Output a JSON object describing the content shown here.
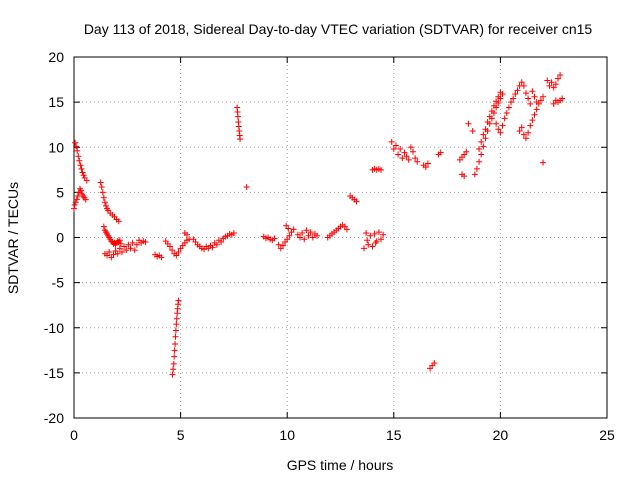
{
  "chart_data": {
    "type": "scatter",
    "title": "Day 113 of 2018, Sidereal Day-to-day VTEC variation (SDTVAR) for receiver cn15",
    "xlabel": "GPS time / hours",
    "ylabel": "SDTVAR / TECUs",
    "xlim": [
      0,
      25
    ],
    "ylim": [
      -20,
      20
    ],
    "xticks": [
      0,
      5,
      10,
      15,
      20,
      25
    ],
    "yticks": [
      -20,
      -15,
      -10,
      -5,
      0,
      5,
      10,
      15,
      20
    ],
    "xtick_labels": [
      "0",
      "5",
      "10",
      "15",
      "20",
      "25"
    ],
    "ytick_labels": [
      "-20",
      "-15",
      "-10",
      "-5",
      "0",
      "5",
      "10",
      "15",
      "20"
    ],
    "grid": true,
    "marker": "+",
    "color": "#ff0000",
    "series": [
      {
        "name": "SDTVAR",
        "points": [
          [
            0.0,
            3.2
          ],
          [
            0.03,
            3.6
          ],
          [
            0.05,
            10.5
          ],
          [
            0.08,
            3.9
          ],
          [
            0.1,
            10.1
          ],
          [
            0.13,
            4.2
          ],
          [
            0.15,
            9.6
          ],
          [
            0.18,
            4.6
          ],
          [
            0.2,
            9.0
          ],
          [
            0.23,
            5.0
          ],
          [
            0.25,
            8.5
          ],
          [
            0.28,
            5.4
          ],
          [
            0.3,
            8.0
          ],
          [
            0.33,
            5.2
          ],
          [
            0.35,
            7.6
          ],
          [
            0.38,
            4.8
          ],
          [
            0.4,
            7.2
          ],
          [
            0.43,
            4.6
          ],
          [
            0.45,
            6.9
          ],
          [
            0.48,
            4.4
          ],
          [
            0.5,
            6.6
          ],
          [
            0.55,
            4.2
          ],
          [
            0.6,
            6.3
          ],
          [
            1.25,
            6.1
          ],
          [
            1.3,
            5.6
          ],
          [
            1.35,
            5.0
          ],
          [
            1.4,
            4.4
          ],
          [
            1.45,
            3.9
          ],
          [
            1.5,
            3.5
          ],
          [
            1.55,
            3.2
          ],
          [
            1.6,
            3.0
          ],
          [
            1.7,
            2.7
          ],
          [
            1.8,
            2.5
          ],
          [
            1.9,
            2.3
          ],
          [
            2.0,
            2.0
          ],
          [
            2.1,
            1.8
          ],
          [
            1.4,
            1.2
          ],
          [
            1.45,
            0.8
          ],
          [
            1.5,
            0.6
          ],
          [
            1.55,
            0.4
          ],
          [
            1.6,
            0.2
          ],
          [
            1.65,
            0.0
          ],
          [
            1.7,
            -0.2
          ],
          [
            1.75,
            -0.4
          ],
          [
            1.8,
            -0.5
          ],
          [
            1.85,
            -0.7
          ],
          [
            1.9,
            -0.6
          ],
          [
            1.95,
            -0.8
          ],
          [
            2.0,
            -0.6
          ],
          [
            2.05,
            -0.4
          ],
          [
            2.1,
            -0.5
          ],
          [
            2.15,
            -0.3
          ],
          [
            2.2,
            -0.7
          ],
          [
            1.45,
            -1.8
          ],
          [
            1.55,
            -2.0
          ],
          [
            1.65,
            -1.6
          ],
          [
            1.75,
            -2.2
          ],
          [
            1.85,
            -1.9
          ],
          [
            1.95,
            -1.5
          ],
          [
            2.05,
            -1.8
          ],
          [
            2.15,
            -1.2
          ],
          [
            2.25,
            -1.6
          ],
          [
            2.35,
            -1.0
          ],
          [
            2.45,
            -1.4
          ],
          [
            2.55,
            -0.8
          ],
          [
            2.65,
            -1.2
          ],
          [
            2.75,
            -0.6
          ],
          [
            2.85,
            -1.4
          ],
          [
            2.95,
            -0.8
          ],
          [
            3.05,
            -0.3
          ],
          [
            3.15,
            -0.6
          ],
          [
            3.25,
            -0.4
          ],
          [
            3.35,
            -0.5
          ],
          [
            3.8,
            -1.9
          ],
          [
            3.9,
            -2.1
          ],
          [
            4.0,
            -2.0
          ],
          [
            4.1,
            -2.2
          ],
          [
            4.3,
            -0.4
          ],
          [
            4.4,
            -0.7
          ],
          [
            4.5,
            -1.0
          ],
          [
            4.6,
            -1.4
          ],
          [
            4.7,
            -1.8
          ],
          [
            4.8,
            -2.0
          ],
          [
            4.9,
            -1.6
          ],
          [
            5.0,
            -1.2
          ],
          [
            5.1,
            -0.9
          ],
          [
            5.2,
            -0.6
          ],
          [
            5.3,
            -0.3
          ],
          [
            5.4,
            -0.2
          ],
          [
            4.62,
            -15.2
          ],
          [
            4.65,
            -14.6
          ],
          [
            4.68,
            -14.0
          ],
          [
            4.7,
            -13.2
          ],
          [
            4.72,
            -12.5
          ],
          [
            4.74,
            -11.8
          ],
          [
            4.76,
            -11.0
          ],
          [
            4.78,
            -10.3
          ],
          [
            4.8,
            -9.6
          ],
          [
            4.82,
            -9.0
          ],
          [
            4.84,
            -8.4
          ],
          [
            4.86,
            -7.9
          ],
          [
            4.88,
            -7.4
          ],
          [
            4.9,
            -7.0
          ],
          [
            5.2,
            0.5
          ],
          [
            5.3,
            0.3
          ],
          [
            5.6,
            -0.2
          ],
          [
            5.7,
            -0.5
          ],
          [
            5.8,
            -0.8
          ],
          [
            5.9,
            -1.0
          ],
          [
            6.0,
            -1.2
          ],
          [
            6.1,
            -1.3
          ],
          [
            6.2,
            -1.0
          ],
          [
            6.3,
            -1.2
          ],
          [
            6.4,
            -0.9
          ],
          [
            6.5,
            -1.1
          ],
          [
            6.6,
            -0.6
          ],
          [
            6.7,
            -0.8
          ],
          [
            6.8,
            -0.3
          ],
          [
            6.9,
            -0.5
          ],
          [
            7.0,
            -0.1
          ],
          [
            7.1,
            0.1
          ],
          [
            7.2,
            0.2
          ],
          [
            7.3,
            0.4
          ],
          [
            7.4,
            0.3
          ],
          [
            7.5,
            0.5
          ],
          [
            7.65,
            14.4
          ],
          [
            7.67,
            13.9
          ],
          [
            7.69,
            13.4
          ],
          [
            7.71,
            12.8
          ],
          [
            7.73,
            12.3
          ],
          [
            7.75,
            11.8
          ],
          [
            7.77,
            11.3
          ],
          [
            7.79,
            10.9
          ],
          [
            8.1,
            5.6
          ],
          [
            8.9,
            0.1
          ],
          [
            9.0,
            -0.1
          ],
          [
            9.1,
            0.0
          ],
          [
            9.2,
            -0.2
          ],
          [
            9.3,
            -0.3
          ],
          [
            9.4,
            -0.1
          ],
          [
            9.6,
            -0.8
          ],
          [
            9.7,
            -1.2
          ],
          [
            9.8,
            -0.9
          ],
          [
            9.9,
            -0.5
          ],
          [
            10.0,
            -0.2
          ],
          [
            10.1,
            0.2
          ],
          [
            10.2,
            0.6
          ],
          [
            10.3,
            0.9
          ],
          [
            9.95,
            1.3
          ],
          [
            10.05,
            1.0
          ],
          [
            10.5,
            0.3
          ],
          [
            10.6,
            0.0
          ],
          [
            10.7,
            0.5
          ],
          [
            10.8,
            -0.2
          ],
          [
            10.9,
            0.8
          ],
          [
            11.0,
            0.2
          ],
          [
            11.1,
            0.6
          ],
          [
            11.2,
            0.0
          ],
          [
            11.3,
            0.4
          ],
          [
            11.4,
            0.2
          ],
          [
            11.9,
            0.0
          ],
          [
            12.0,
            0.2
          ],
          [
            12.1,
            0.4
          ],
          [
            12.2,
            0.6
          ],
          [
            12.3,
            0.8
          ],
          [
            12.4,
            1.0
          ],
          [
            12.5,
            1.2
          ],
          [
            12.6,
            1.4
          ],
          [
            12.7,
            1.2
          ],
          [
            12.8,
            0.9
          ],
          [
            12.95,
            4.6
          ],
          [
            13.05,
            4.4
          ],
          [
            13.15,
            4.2
          ],
          [
            13.25,
            4.0
          ],
          [
            13.6,
            -1.2
          ],
          [
            13.7,
            0.5
          ],
          [
            13.8,
            -0.8
          ],
          [
            13.9,
            0.2
          ],
          [
            14.0,
            -1.0
          ],
          [
            14.1,
            0.4
          ],
          [
            14.2,
            -0.4
          ],
          [
            14.3,
            0.6
          ],
          [
            14.4,
            -0.2
          ],
          [
            14.5,
            0.3
          ],
          [
            13.75,
            -0.3
          ],
          [
            14.15,
            -0.6
          ],
          [
            14.0,
            7.5
          ],
          [
            14.1,
            7.6
          ],
          [
            14.2,
            7.5
          ],
          [
            14.3,
            7.6
          ],
          [
            14.4,
            7.5
          ],
          [
            14.9,
            10.6
          ],
          [
            15.0,
            9.8
          ],
          [
            15.1,
            10.2
          ],
          [
            15.2,
            9.2
          ],
          [
            15.3,
            9.8
          ],
          [
            15.4,
            8.8
          ],
          [
            15.5,
            9.4
          ],
          [
            15.6,
            9.0
          ],
          [
            15.7,
            8.6
          ],
          [
            15.8,
            10.0
          ],
          [
            15.9,
            9.5
          ],
          [
            16.0,
            8.8
          ],
          [
            16.1,
            8.4
          ],
          [
            16.4,
            8.0
          ],
          [
            16.5,
            7.8
          ],
          [
            16.6,
            8.2
          ],
          [
            16.7,
            -14.5
          ],
          [
            16.8,
            -14.2
          ],
          [
            16.9,
            -13.9
          ],
          [
            17.1,
            9.2
          ],
          [
            17.2,
            9.4
          ],
          [
            18.1,
            8.6
          ],
          [
            18.2,
            8.9
          ],
          [
            18.3,
            9.2
          ],
          [
            18.4,
            9.5
          ],
          [
            18.2,
            7.0
          ],
          [
            18.3,
            6.8
          ],
          [
            18.5,
            12.6
          ],
          [
            18.7,
            11.8
          ],
          [
            18.8,
            7.0
          ],
          [
            18.9,
            7.6
          ],
          [
            19.0,
            8.4
          ],
          [
            19.1,
            9.2
          ],
          [
            19.2,
            10.1
          ],
          [
            19.3,
            11.0
          ],
          [
            19.4,
            11.8
          ],
          [
            19.5,
            12.6
          ],
          [
            19.6,
            13.2
          ],
          [
            19.7,
            13.8
          ],
          [
            19.8,
            14.4
          ],
          [
            19.9,
            14.9
          ],
          [
            20.0,
            15.4
          ],
          [
            20.1,
            15.9
          ],
          [
            19.0,
            9.8
          ],
          [
            19.1,
            10.6
          ],
          [
            19.2,
            11.4
          ],
          [
            19.3,
            12.0
          ],
          [
            19.4,
            12.8
          ],
          [
            19.5,
            13.4
          ],
          [
            19.6,
            14.0
          ],
          [
            19.7,
            14.6
          ],
          [
            19.8,
            15.1
          ],
          [
            19.9,
            15.6
          ],
          [
            20.0,
            16.1
          ],
          [
            19.8,
            12.6
          ],
          [
            19.9,
            12.0
          ],
          [
            20.0,
            11.6
          ],
          [
            20.1,
            12.4
          ],
          [
            20.2,
            13.2
          ],
          [
            20.3,
            13.8
          ],
          [
            20.4,
            14.4
          ],
          [
            20.5,
            15.0
          ],
          [
            20.6,
            15.4
          ],
          [
            20.7,
            15.9
          ],
          [
            20.8,
            16.3
          ],
          [
            20.9,
            16.8
          ],
          [
            21.0,
            17.2
          ],
          [
            20.9,
            11.8
          ],
          [
            21.0,
            12.2
          ],
          [
            21.1,
            11.4
          ],
          [
            21.2,
            11.0
          ],
          [
            21.3,
            11.6
          ],
          [
            21.4,
            12.4
          ],
          [
            21.5,
            13.0
          ],
          [
            21.6,
            13.6
          ],
          [
            21.7,
            14.2
          ],
          [
            21.8,
            14.8
          ],
          [
            21.9,
            15.2
          ],
          [
            22.0,
            15.6
          ],
          [
            21.1,
            16.8
          ],
          [
            21.2,
            16.0
          ],
          [
            21.3,
            15.4
          ],
          [
            21.4,
            14.8
          ],
          [
            21.5,
            16.2
          ],
          [
            21.6,
            15.6
          ],
          [
            21.7,
            15.0
          ],
          [
            22.0,
            8.3
          ],
          [
            22.2,
            17.4
          ],
          [
            22.3,
            16.8
          ],
          [
            22.4,
            17.2
          ],
          [
            22.5,
            16.6
          ],
          [
            22.6,
            17.0
          ],
          [
            22.7,
            17.6
          ],
          [
            22.8,
            18.0
          ],
          [
            22.9,
            15.4
          ],
          [
            22.8,
            15.2
          ],
          [
            22.7,
            15.0
          ],
          [
            22.6,
            15.2
          ],
          [
            22.5,
            14.8
          ]
        ]
      }
    ]
  }
}
